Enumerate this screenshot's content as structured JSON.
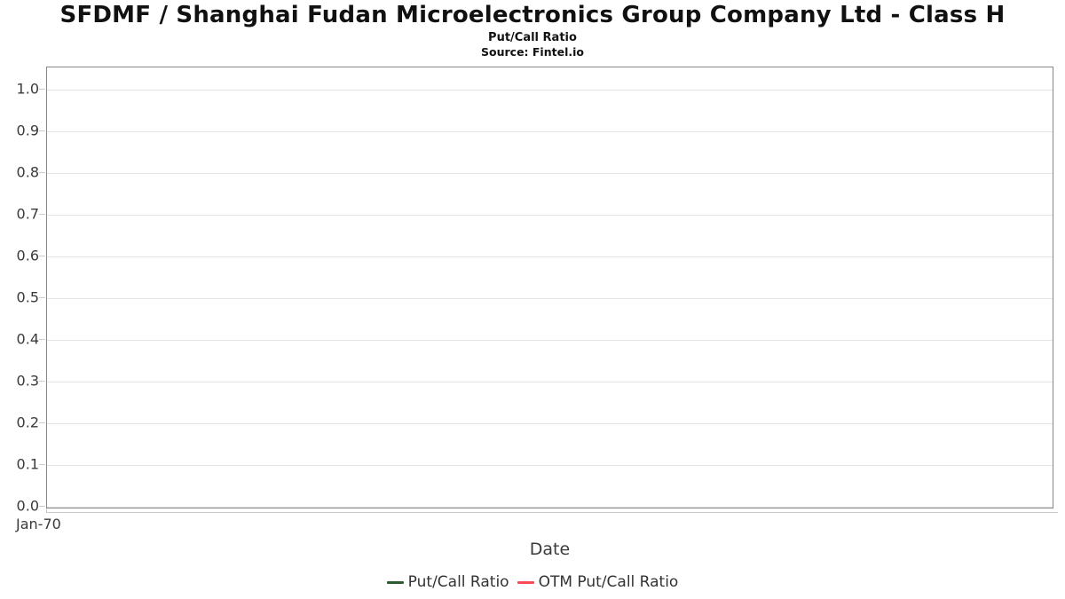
{
  "header": {
    "title": "SFDMF / Shanghai Fudan Microelectronics Group Company Ltd - Class H",
    "subtitle": "Put/Call Ratio",
    "source": "Source: Fintel.io"
  },
  "chart_data": {
    "type": "line",
    "title": "SFDMF / Shanghai Fudan Microelectronics Group Company Ltd - Class H",
    "subtitle": "Put/Call Ratio",
    "source": "Source: Fintel.io",
    "xlabel": "Date",
    "ylabel": "",
    "ylim": [
      0.0,
      1.0
    ],
    "y_ticks": [
      "0.0",
      "0.1",
      "0.2",
      "0.3",
      "0.4",
      "0.5",
      "0.6",
      "0.7",
      "0.8",
      "0.9",
      "1.0"
    ],
    "x_ticks": [
      "Jan-70"
    ],
    "grid": "horizontal",
    "legend_position": "bottom",
    "series": [
      {
        "name": "Put/Call Ratio",
        "color": "#2d5c33",
        "x": [],
        "values": []
      },
      {
        "name": "OTM Put/Call Ratio",
        "color": "#fa4b56",
        "x": [],
        "values": []
      }
    ],
    "colors": {
      "plot_border": "#85878a",
      "gridline": "#e4e4e4",
      "tick": "#cccccc",
      "axis_text": "#3a3a3a"
    }
  }
}
